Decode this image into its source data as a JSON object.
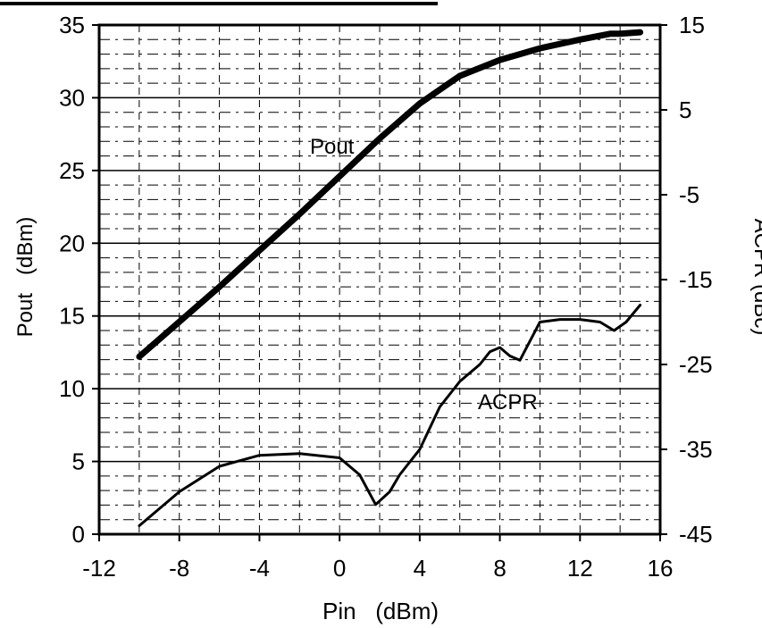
{
  "chart_data": {
    "type": "line",
    "xlabel": "Pin   (dBm)",
    "ylabel_left": "Pout   (dBm)",
    "ylabel_right": "ACPR (dBc)",
    "xlim": [
      -12,
      16
    ],
    "ylim_left": [
      0,
      35
    ],
    "ylim_right": [
      -45,
      15
    ],
    "x_ticks": [
      "-12",
      "-8",
      "-4",
      "0",
      "4",
      "8",
      "12",
      "16"
    ],
    "y_left_ticks": [
      "0",
      "5",
      "10",
      "15",
      "20",
      "25",
      "30",
      "35"
    ],
    "y_right_ticks": [
      "-45",
      "-35",
      "-25",
      "-15",
      "-5",
      "5",
      "15"
    ],
    "grid": true,
    "series": [
      {
        "name": "Pout",
        "axis": "left",
        "x": [
          -10,
          -8,
          -6,
          -4,
          -2,
          0,
          2,
          4,
          6,
          8,
          10,
          12,
          13.5,
          14,
          15
        ],
        "y": [
          12.2,
          14.6,
          17.0,
          19.5,
          22.0,
          24.6,
          27.2,
          29.6,
          31.5,
          32.6,
          33.4,
          34.0,
          34.4,
          34.4,
          34.5
        ]
      },
      {
        "name": "ACPR",
        "axis": "right",
        "x": [
          -10,
          -8,
          -6,
          -4,
          -2,
          0,
          1,
          1.8,
          2.5,
          3,
          4,
          5,
          6,
          7,
          7.5,
          8,
          8.5,
          9,
          10,
          11,
          12,
          13,
          13.7,
          14.3,
          15
        ],
        "y": [
          -44,
          -40,
          -37,
          -35.7,
          -35.5,
          -36,
          -38,
          -41.5,
          -40,
          -38,
          -35,
          -30,
          -27,
          -25,
          -23.5,
          -23,
          -24,
          -24.5,
          -20,
          -19.7,
          -19.7,
          -20,
          -21,
          -20,
          -18
        ]
      }
    ]
  }
}
